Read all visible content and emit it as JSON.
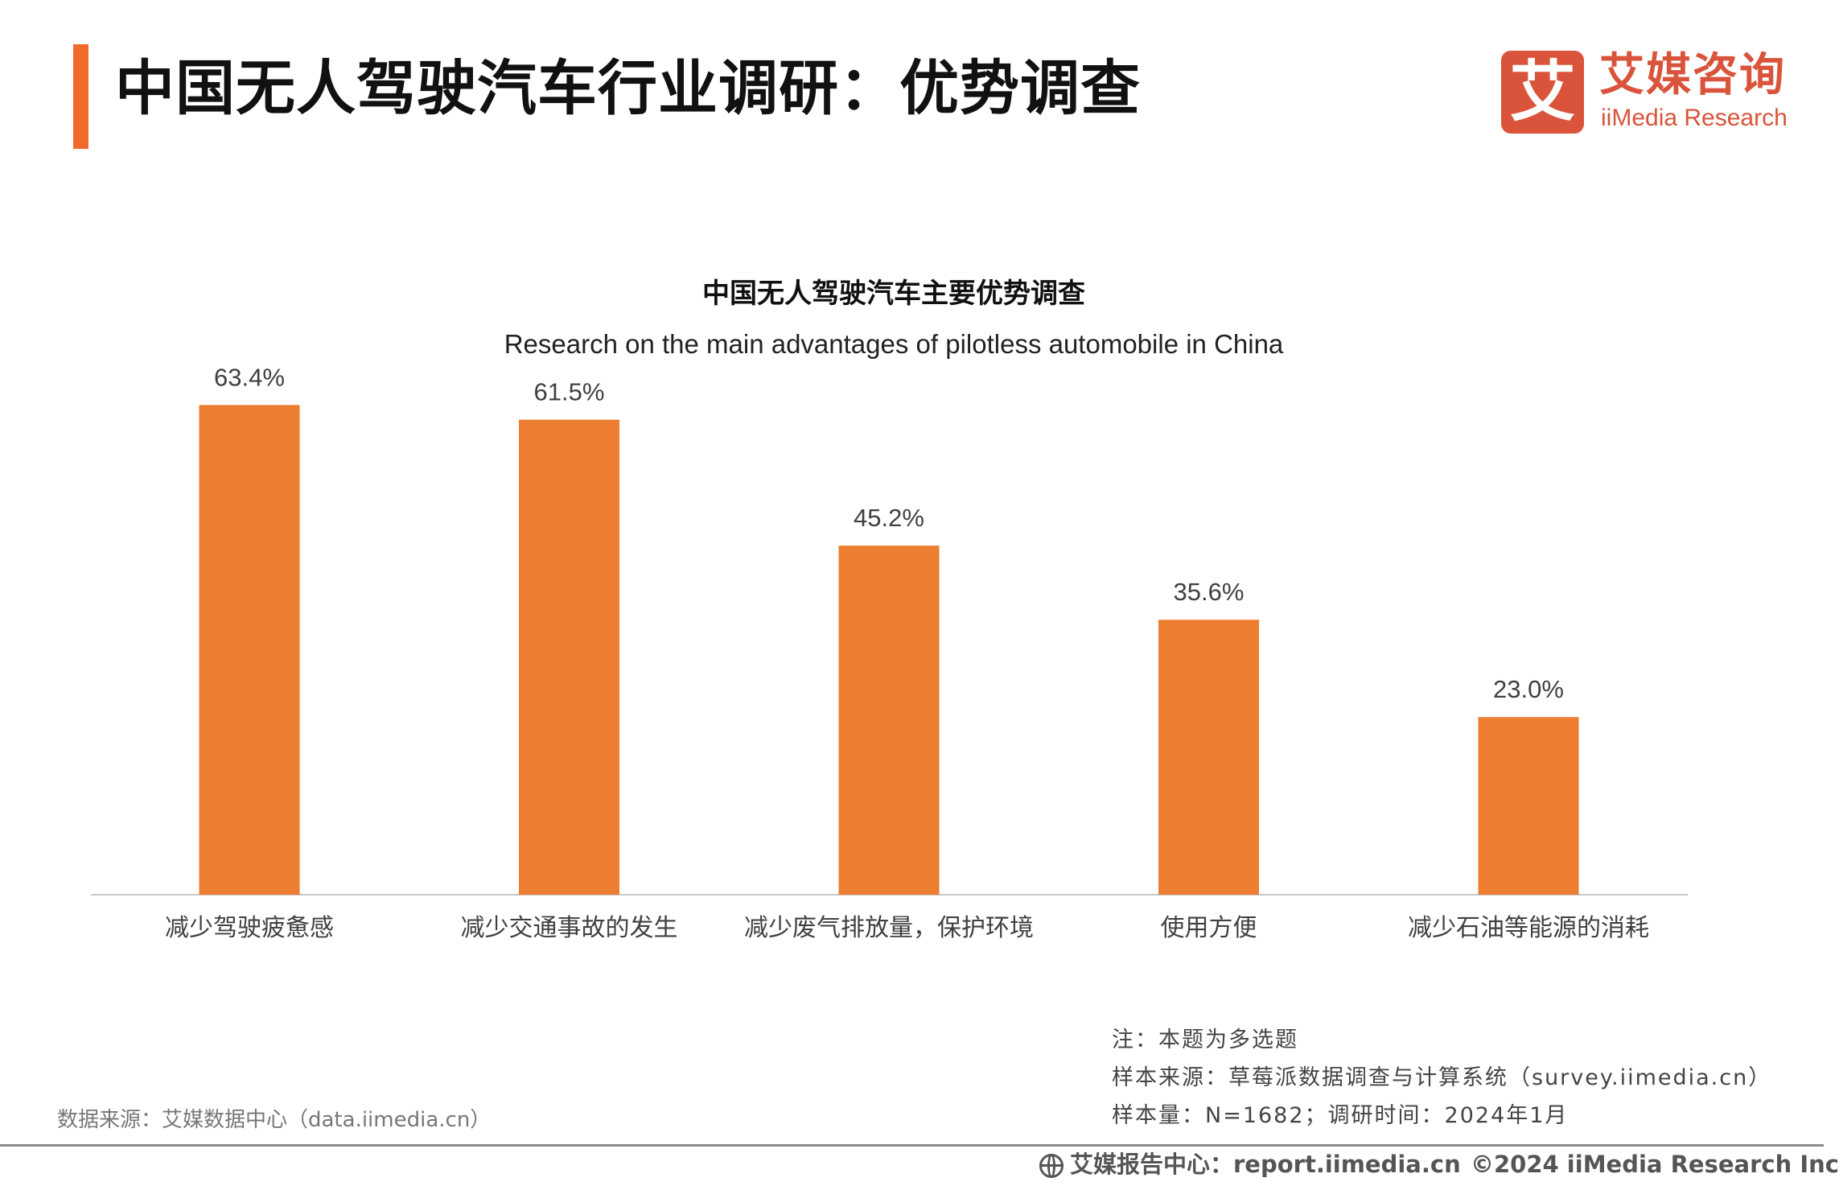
{
  "header": {
    "title": "中国无人驾驶汽车行业调研：优势调查",
    "accent_color": "#f26a2b"
  },
  "logo": {
    "mark": "艾",
    "name_cn": "艾媒咨询",
    "name_en": "iiMedia Research",
    "color": "#d9543b"
  },
  "chart_data": {
    "type": "bar",
    "title": "中国无人驾驶汽车主要优势调查",
    "subtitle": "Research on the main advantages of pilotless automobile in China",
    "categories": [
      "减少驾驶疲惫感",
      "减少交通事故的发生",
      "减少废气排放量，保护环境",
      "使用方便",
      "减少石油等能源的消耗"
    ],
    "values": [
      63.4,
      61.5,
      45.2,
      35.6,
      23.0
    ],
    "value_labels": [
      "63.4%",
      "61.5%",
      "45.2%",
      "35.6%",
      "23.0%"
    ],
    "unit": "%",
    "ylim": [
      0,
      70
    ],
    "grid": false,
    "legend": "none",
    "bar_color": "#ed7d31",
    "axis_color": "#c8c8c8"
  },
  "notes": {
    "note": "注：本题为多选题",
    "sample_source": "样本来源：草莓派数据调查与计算系统（survey.iimedia.cn）",
    "sample_size": "样本量：N=1682；调研时间：2024年1月"
  },
  "data_source": "数据来源：艾媒数据中心（data.iimedia.cn）",
  "footer": {
    "report_center": "艾媒报告中心：report.iimedia.cn",
    "copyright": "©2024  iiMedia Research  Inc"
  }
}
